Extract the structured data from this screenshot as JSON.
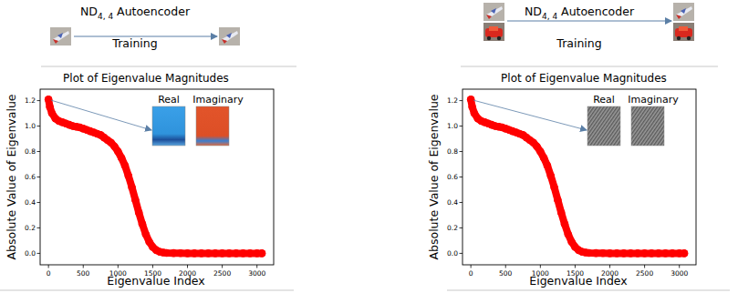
{
  "chart_data": [
    {
      "type": "line",
      "title": "Plot of Eigenvalue Magnitudes",
      "x_label": "Eigenvalue Index",
      "y_label": "Absolute Value of Eigenvalue",
      "pipeline": {
        "model": "ND",
        "model_subscript": "4, 4",
        "model_suffix": " Autoencoder",
        "stage": "Training"
      },
      "inset_labels": [
        "Real",
        "Imaginary"
      ],
      "x": [
        0,
        20,
        50,
        100,
        150,
        200,
        250,
        300,
        350,
        400,
        450,
        500,
        550,
        600,
        650,
        700,
        750,
        800,
        850,
        900,
        950,
        1000,
        1050,
        1100,
        1150,
        1200,
        1250,
        1300,
        1350,
        1400,
        1450,
        1500,
        1550,
        1600,
        1650,
        1700,
        1800,
        1900,
        2000,
        2100,
        2200,
        2300,
        2400,
        2500,
        2600,
        2700,
        2800,
        2900,
        3000,
        3071
      ],
      "series": [
        {
          "color": "#ff0000",
          "marker": "circle",
          "line_style": "solid",
          "values": [
            1.21,
            1.15,
            1.1,
            1.06,
            1.04,
            1.03,
            1.02,
            1.01,
            1.0,
            0.995,
            0.99,
            0.98,
            0.97,
            0.96,
            0.95,
            0.94,
            0.93,
            0.91,
            0.89,
            0.87,
            0.84,
            0.8,
            0.75,
            0.69,
            0.61,
            0.52,
            0.42,
            0.32,
            0.23,
            0.15,
            0.09,
            0.05,
            0.025,
            0.012,
            0.006,
            0.003,
            0.002,
            0.001,
            0,
            0,
            0,
            0,
            0,
            0,
            0,
            0,
            0,
            0,
            0,
            0
          ]
        }
      ],
      "xlim": [
        -120,
        3240
      ],
      "ylim": [
        -0.09,
        1.29
      ],
      "xticks": [
        0,
        500,
        1000,
        1500,
        2000,
        2500,
        3000
      ],
      "yticks": [
        {
          "value": 0,
          "label": "0.0"
        },
        {
          "value": 0.2,
          "label": "0.2"
        },
        {
          "value": 0.4,
          "label": "0.4"
        },
        {
          "value": 0.6,
          "label": "0.6"
        },
        {
          "value": 0.8,
          "label": "0.8"
        },
        {
          "value": 1.0,
          "label": "1.0"
        },
        {
          "value": 1.2,
          "label": "1.2"
        }
      ],
      "grid": false
    },
    {
      "type": "line",
      "title": "Plot of Eigenvalue Magnitudes",
      "x_label": "Eigenvalue Index",
      "y_label": "Absolute Value of Eigenvalue",
      "pipeline": {
        "model": "ND",
        "model_subscript": "4, 4",
        "model_suffix": " Autoencoder",
        "stage": "Training"
      },
      "inset_labels": [
        "Real",
        "Imaginary"
      ],
      "x": [
        0,
        20,
        50,
        100,
        150,
        200,
        250,
        300,
        350,
        400,
        450,
        500,
        550,
        600,
        650,
        700,
        750,
        800,
        850,
        900,
        950,
        1000,
        1050,
        1100,
        1150,
        1200,
        1250,
        1300,
        1350,
        1400,
        1450,
        1500,
        1550,
        1600,
        1650,
        1700,
        1800,
        1900,
        2000,
        2100,
        2200,
        2300,
        2400,
        2500,
        2600,
        2700,
        2800,
        2900,
        3000,
        3071
      ],
      "series": [
        {
          "color": "#ff0000",
          "marker": "circle",
          "line_style": "solid",
          "values": [
            1.21,
            1.15,
            1.1,
            1.06,
            1.04,
            1.03,
            1.02,
            1.01,
            1.0,
            0.995,
            0.99,
            0.98,
            0.97,
            0.96,
            0.95,
            0.94,
            0.93,
            0.91,
            0.89,
            0.87,
            0.84,
            0.8,
            0.75,
            0.69,
            0.61,
            0.52,
            0.42,
            0.32,
            0.23,
            0.15,
            0.09,
            0.05,
            0.025,
            0.012,
            0.006,
            0.003,
            0.002,
            0.001,
            0,
            0,
            0,
            0,
            0,
            0,
            0,
            0,
            0,
            0,
            0,
            0
          ]
        }
      ],
      "xlim": [
        -120,
        3240
      ],
      "ylim": [
        -0.09,
        1.29
      ],
      "xticks": [
        0,
        500,
        1000,
        1500,
        2000,
        2500,
        3000
      ],
      "yticks": [
        {
          "value": 0,
          "label": "0.0"
        },
        {
          "value": 0.2,
          "label": "0.2"
        },
        {
          "value": 0.4,
          "label": "0.4"
        },
        {
          "value": 0.6,
          "label": "0.6"
        },
        {
          "value": 0.8,
          "label": "0.8"
        },
        {
          "value": 1.0,
          "label": "1.0"
        },
        {
          "value": 1.2,
          "label": "1.2"
        }
      ],
      "grid": false
    }
  ]
}
